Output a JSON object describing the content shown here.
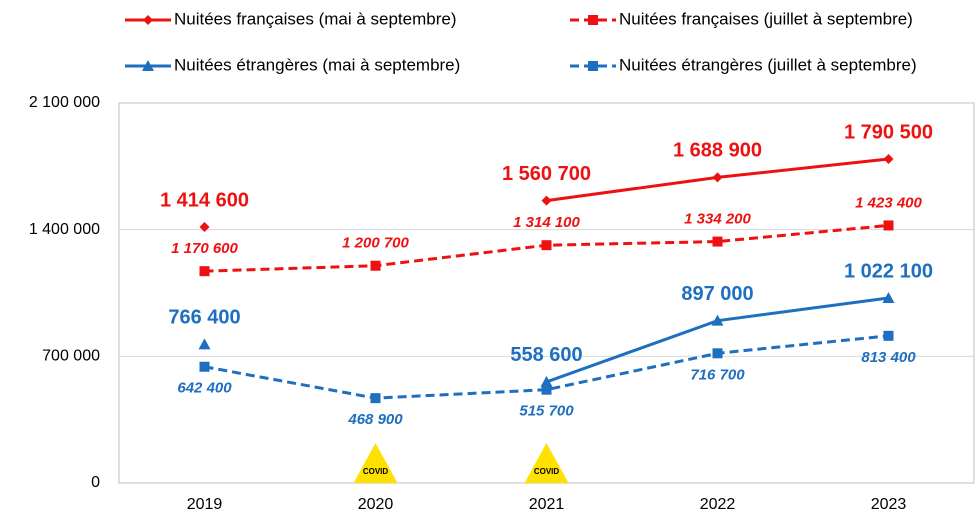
{
  "chart_data": {
    "type": "line",
    "categories": [
      "2019",
      "2020",
      "2021",
      "2022",
      "2023"
    ],
    "series": [
      {
        "name": "Nuitées françaises (mai à septembre)",
        "color": "#ee1111",
        "style": "solid",
        "marker": "diamond",
        "label_style": "big",
        "values": [
          1414600,
          null,
          1560700,
          1688900,
          1790500
        ],
        "value_labels": [
          "1 414 600",
          null,
          "1 560 700",
          "1 688 900",
          "1 790 500"
        ]
      },
      {
        "name": "Nuitées françaises (juillet à septembre)",
        "color": "#ee1111",
        "style": "dashed",
        "marker": "square",
        "label_style": "small",
        "values": [
          1170600,
          1200700,
          1314100,
          1334200,
          1423400
        ],
        "value_labels": [
          "1 170 600",
          "1 200 700",
          "1 314 100",
          "1 334 200",
          "1 423 400"
        ]
      },
      {
        "name": "Nuitées étrangères (mai à septembre)",
        "color": "#1e6fc0",
        "style": "solid",
        "marker": "triangle",
        "label_style": "big",
        "values": [
          766400,
          null,
          558600,
          897000,
          1022100
        ],
        "value_labels": [
          "766 400",
          null,
          "558 600",
          "897 000",
          "1 022 100"
        ]
      },
      {
        "name": "Nuitées étrangères (juillet à septembre)",
        "color": "#1e6fc0",
        "style": "dashed",
        "marker": "square",
        "label_style": "small",
        "values": [
          642400,
          468900,
          515700,
          716700,
          813400
        ],
        "value_labels": [
          "642 400",
          "468 900",
          "515 700",
          "716 700",
          "813 400"
        ]
      }
    ],
    "ylim": [
      0,
      2100000
    ],
    "yticks": [
      0,
      {
        "value": 700000,
        "label": "700 000"
      },
      {
        "value": 1400000,
        "label": "1 400 000"
      },
      {
        "value": 2100000,
        "label": "2 100 000"
      }
    ],
    "grid": true,
    "legend": "top",
    "annotations": [
      {
        "text": "COVID",
        "category": "2020"
      },
      {
        "text": "COVID",
        "category": "2021"
      }
    ]
  }
}
